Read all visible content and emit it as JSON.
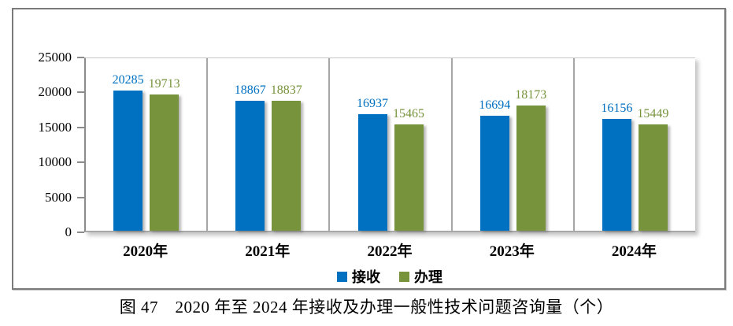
{
  "figure": {
    "caption": "图 47　2020 年至 2024 年接收及办理一般性技术问题咨询量（个）"
  },
  "chart_data": {
    "type": "bar",
    "title": "",
    "xlabel": "",
    "ylabel": "",
    "categories": [
      "2020年",
      "2021年",
      "2022年",
      "2023年",
      "2024年"
    ],
    "series": [
      {
        "name": "接收",
        "color": "#0070C0",
        "values": [
          20285,
          18867,
          16937,
          16694,
          16156
        ]
      },
      {
        "name": "办理",
        "color": "#77933C",
        "values": [
          19713,
          18837,
          15465,
          18173,
          15449
        ]
      }
    ],
    "ylim": [
      0,
      25000
    ],
    "yticks": [
      0,
      5000,
      10000,
      15000,
      20000,
      25000
    ],
    "grid": "vertical-category-separators",
    "legend_position": "bottom",
    "data_labels": true
  }
}
